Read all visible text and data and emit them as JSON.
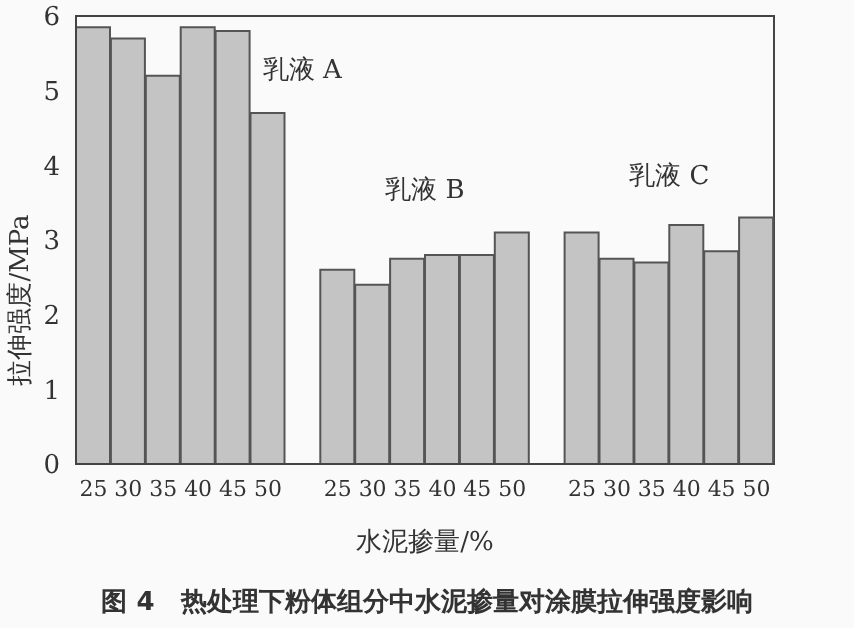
{
  "chart_data": {
    "type": "bar",
    "title": "图 4　热处理下粉体组分中水泥掺量对涂膜拉伸强度影响",
    "xlabel": "水泥掺量/%",
    "ylabel": "拉伸强度/MPa",
    "categories": [
      "25",
      "30",
      "35",
      "40",
      "45",
      "50",
      null,
      "25",
      "30",
      "35",
      "40",
      "45",
      "50",
      null,
      "25",
      "30",
      "35",
      "40",
      "45",
      "50"
    ],
    "values": [
      5.85,
      5.7,
      5.2,
      5.85,
      5.8,
      4.7,
      null,
      2.6,
      2.4,
      2.75,
      2.8,
      2.8,
      3.1,
      null,
      3.1,
      2.75,
      2.7,
      3.2,
      2.85,
      3.3
    ],
    "color": "#c4c4c4",
    "annotations": [
      "乳液 A",
      "乳液 B",
      "乳液 C"
    ],
    "ylim": [
      0,
      6
    ],
    "yticks": [
      0,
      1,
      2,
      3,
      4,
      5,
      6
    ]
  }
}
